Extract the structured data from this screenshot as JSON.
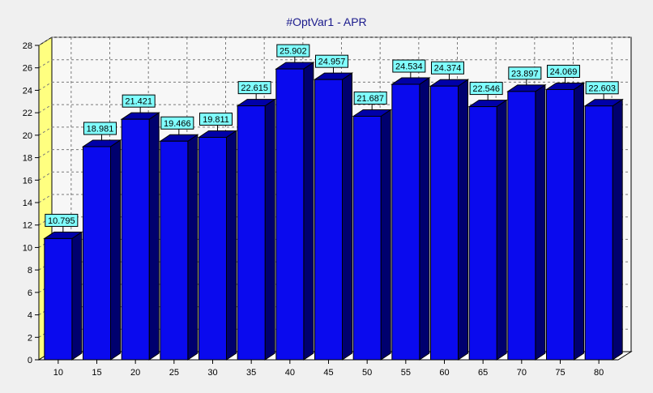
{
  "chart_data": {
    "type": "bar",
    "title": "#OptVar1 - APR",
    "xlabel": "",
    "ylabel": "",
    "categories": [
      "10",
      "15",
      "20",
      "25",
      "30",
      "35",
      "40",
      "45",
      "50",
      "55",
      "60",
      "65",
      "70",
      "75",
      "80"
    ],
    "values": [
      10.795,
      18.981,
      21.421,
      19.466,
      19.811,
      22.615,
      25.902,
      24.957,
      21.687,
      24.534,
      24.374,
      22.546,
      23.897,
      24.069,
      22.603
    ],
    "value_labels": [
      "10.795",
      "18.981",
      "21.421",
      "19.466",
      "19.811",
      "22.615",
      "25.902",
      "24.957",
      "21.687",
      "24.534",
      "24.374",
      "22.546",
      "23.897",
      "24.069",
      "22.603"
    ],
    "ylim": [
      0,
      28
    ],
    "y_ticks": [
      "0",
      "2",
      "4",
      "6",
      "8",
      "10",
      "12",
      "14",
      "16",
      "18",
      "20",
      "22",
      "24",
      "26",
      "28"
    ],
    "grid": true,
    "style": "3d",
    "colors": {
      "bar_front": "#0a0aee",
      "bar_top": "#0000a8",
      "bar_side": "#00006e",
      "bar_edge": "#000000",
      "label_bg": "#80ffff",
      "left_wall": "#ffff80",
      "grid": "#7a7a7a",
      "title": "#1a1a8c"
    }
  }
}
